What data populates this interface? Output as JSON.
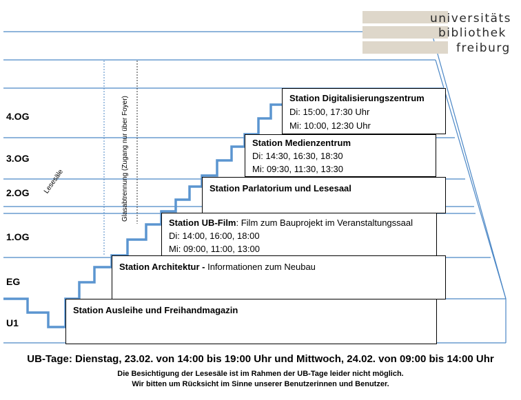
{
  "logo": {
    "lines": [
      "universitäts",
      "bibliothek",
      "freiburg"
    ]
  },
  "floors": [
    "4.OG",
    "3.OG",
    "2.OG",
    "1.OG",
    "EG",
    "U1"
  ],
  "annotations": {
    "lesesaele": "Lesesäle",
    "glass": "Glasabtrennung (Zugang nur über Foyer)"
  },
  "stations": {
    "digital": {
      "title": "Station Digitalisierungszentrum",
      "line1": "Di:  15:00, 17:30 Uhr",
      "line2": "Mi: 10:00, 12:30 Uhr"
    },
    "medien": {
      "title": "Station Medienzentrum",
      "line1": "Di:  14:30, 16:30, 18:30",
      "line2": "Mi: 09:30, 11:30, 13:30"
    },
    "parlatorium": {
      "title": "Station Parlatorium und Lesesaal"
    },
    "film": {
      "title": "Station UB-Film",
      "desc": ": Film zum Bauprojekt im  Veranstaltungssaal",
      "line1": "Di:  14:00, 16:00, 18:00",
      "line2": "Mi: 09:00, 11:00, 13:00"
    },
    "architektur": {
      "title": "Station Architektur -",
      "desc": " Informationen zum Neubau"
    },
    "ausleihe": {
      "title": "Station Ausleihe und Freihandmagazin"
    }
  },
  "footer": {
    "main": "UB-Tage: Dienstag, 23.02. von 14:00 bis 19:00 Uhr und Mittwoch, 24.02. von 09:00 bis 14:00 Uhr",
    "sub1": "Die Besichtigung der Lesesäle ist im Rahmen der UB-Tage leider nicht möglich.",
    "sub2": "Wir bitten um Rücksicht im Sinne unserer Benutzerinnen und Benutzer."
  },
  "colors": {
    "floor_line": "#4a86c5",
    "stairs": "#5b95d0",
    "logo_tile": "#ded7ca",
    "border": "#000000"
  }
}
